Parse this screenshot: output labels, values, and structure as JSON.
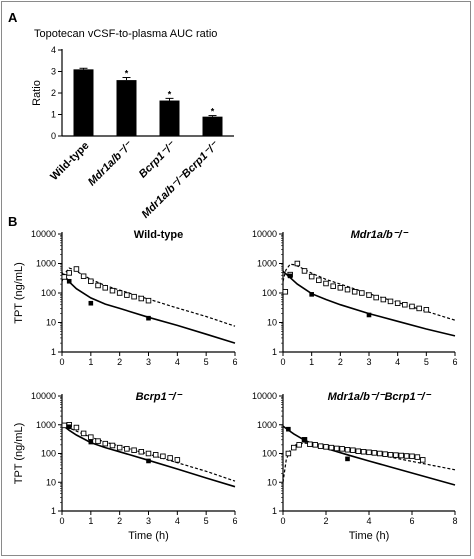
{
  "panel_a_letter": "A",
  "panel_b_letter": "B",
  "chart_data": [
    {
      "type": "bar",
      "title": "Topotecan vCSF-to-plasma AUC ratio",
      "ylabel": "Ratio",
      "ylim": [
        0,
        4
      ],
      "yticks": [
        0,
        1,
        2,
        3,
        4
      ],
      "categories": [
        "Wild-type",
        "Mdr1a/b⁻/⁻",
        "Bcrp1⁻/⁻",
        "Mdr1a/b⁻/⁻Bcrp1⁻/⁻"
      ],
      "values": [
        3.1,
        2.6,
        1.65,
        0.9
      ],
      "errors": [
        0.05,
        0.12,
        0.1,
        0.05
      ],
      "significance": [
        "",
        "*",
        "*",
        "*"
      ],
      "bar_color": "#000000"
    },
    {
      "type": "scatter",
      "panel_title": "Wild-type",
      "xlabel": "",
      "ylabel": "TPT (ng/mL)",
      "xlim": [
        0,
        6
      ],
      "xticks": [
        0,
        1,
        2,
        3,
        4,
        5,
        6
      ],
      "ylim": [
        1,
        10000
      ],
      "yscale": "log",
      "yticks": [
        1,
        10,
        100,
        1000,
        10000
      ],
      "plasma_observed": {
        "x": [
          0.25,
          1,
          3
        ],
        "y": [
          250,
          45,
          14
        ]
      },
      "vcsf_observed": {
        "x": [
          0.08,
          0.25,
          0.5,
          0.75,
          1,
          1.25,
          1.5,
          1.75,
          2,
          2.25,
          2.5,
          2.75,
          3
        ],
        "y": [
          350,
          480,
          650,
          370,
          250,
          180,
          150,
          120,
          100,
          85,
          75,
          65,
          55
        ]
      },
      "plasma_model": {
        "x": [
          0,
          0.25,
          0.5,
          1,
          1.5,
          2,
          3,
          4,
          5,
          6
        ],
        "y": [
          480,
          240,
          140,
          68,
          42,
          30,
          15,
          8,
          4,
          2
        ]
      },
      "vcsf_model": {
        "x": [
          0,
          0.1,
          0.25,
          0.4,
          0.6,
          1,
          1.5,
          2,
          3,
          4,
          5,
          6
        ],
        "y": [
          250,
          460,
          700,
          630,
          480,
          290,
          180,
          125,
          62,
          31,
          16,
          7.5
        ]
      }
    },
    {
      "type": "scatter",
      "panel_title": "Mdr1a/b⁻/⁻",
      "xlabel": "",
      "ylabel": "",
      "xlim": [
        0,
        6
      ],
      "xticks": [
        0,
        1,
        2,
        3,
        4,
        5,
        6
      ],
      "ylim": [
        1,
        10000
      ],
      "yscale": "log",
      "yticks": [
        1,
        10,
        100,
        1000,
        10000
      ],
      "plasma_observed": {
        "x": [
          0.25,
          1,
          3
        ],
        "y": [
          380,
          90,
          18
        ]
      },
      "vcsf_observed": {
        "x": [
          0.08,
          0.25,
          0.5,
          0.75,
          1,
          1.25,
          1.5,
          1.75,
          2,
          2.25,
          2.5,
          2.75,
          3,
          3.25,
          3.5,
          3.75,
          4,
          4.25,
          4.5,
          4.75,
          5
        ],
        "y": [
          110,
          420,
          1000,
          560,
          360,
          270,
          210,
          170,
          150,
          130,
          110,
          100,
          85,
          70,
          60,
          52,
          45,
          40,
          35,
          30,
          27
        ]
      },
      "plasma_model": {
        "x": [
          0,
          0.25,
          0.5,
          1,
          1.5,
          2,
          3,
          4,
          5,
          6
        ],
        "y": [
          550,
          330,
          200,
          95,
          60,
          40,
          20,
          11,
          6,
          3.5
        ]
      },
      "vcsf_model": {
        "x": [
          0,
          0.1,
          0.25,
          0.4,
          0.6,
          1,
          1.5,
          2,
          3,
          4,
          5,
          6
        ],
        "y": [
          250,
          600,
          950,
          900,
          750,
          470,
          290,
          200,
          95,
          48,
          24,
          12
        ]
      }
    },
    {
      "type": "scatter",
      "panel_title": "Bcrp1⁻/⁻",
      "xlabel": "Time (h)",
      "ylabel": "TPT (ng/mL)",
      "xlim": [
        0,
        6
      ],
      "xticks": [
        0,
        1,
        2,
        3,
        4,
        5,
        6
      ],
      "ylim": [
        1,
        10000
      ],
      "yscale": "log",
      "yticks": [
        1,
        10,
        100,
        1000,
        10000
      ],
      "plasma_observed": {
        "x": [
          0.25,
          1,
          3
        ],
        "y": [
          850,
          250,
          55
        ]
      },
      "vcsf_observed": {
        "x": [
          0.08,
          0.25,
          0.5,
          0.75,
          1,
          1.25,
          1.5,
          1.75,
          2,
          2.25,
          2.5,
          2.75,
          3,
          3.25,
          3.5,
          3.75,
          4
        ],
        "y": [
          950,
          1000,
          800,
          500,
          370,
          270,
          220,
          190,
          160,
          145,
          130,
          115,
          100,
          90,
          80,
          70,
          60
        ]
      },
      "plasma_model": {
        "x": [
          0,
          0.25,
          0.5,
          1,
          1.5,
          2,
          3,
          4,
          5,
          6
        ],
        "y": [
          1000,
          640,
          440,
          240,
          160,
          115,
          58,
          29,
          14,
          7
        ]
      },
      "vcsf_model": {
        "x": [
          0,
          0.25,
          0.5,
          1,
          1.5,
          2,
          3,
          4,
          5,
          6
        ],
        "y": [
          1000,
          780,
          600,
          370,
          250,
          180,
          95,
          48,
          24,
          11
        ]
      }
    },
    {
      "type": "scatter",
      "panel_title": "Mdr1a/b⁻/⁻Bcrp1⁻/⁻",
      "xlabel": "Time (h)",
      "ylabel": "",
      "xlim": [
        0,
        8
      ],
      "xticks": [
        0,
        2,
        4,
        6,
        8
      ],
      "ylim": [
        1,
        10000
      ],
      "yscale": "log",
      "yticks": [
        1,
        10,
        100,
        1000,
        10000
      ],
      "plasma_observed": {
        "x": [
          0.25,
          1,
          3
        ],
        "y": [
          700,
          300,
          65
        ]
      },
      "vcsf_observed": {
        "x": [
          0.25,
          0.5,
          0.75,
          1,
          1.25,
          1.5,
          1.75,
          2,
          2.25,
          2.5,
          2.75,
          3,
          3.25,
          3.5,
          3.75,
          4,
          4.25,
          4.5,
          4.75,
          5,
          5.25,
          5.5,
          5.75,
          6,
          6.25,
          6.5
        ],
        "y": [
          100,
          160,
          200,
          300,
          210,
          200,
          180,
          170,
          160,
          150,
          145,
          135,
          130,
          120,
          115,
          110,
          105,
          100,
          95,
          90,
          88,
          85,
          82,
          80,
          75,
          60
        ]
      },
      "plasma_model": {
        "x": [
          0,
          0.25,
          0.5,
          1,
          1.5,
          2,
          3,
          4,
          5,
          6,
          7,
          8
        ],
        "y": [
          900,
          650,
          480,
          290,
          200,
          150,
          90,
          55,
          34,
          21,
          13,
          8
        ]
      },
      "vcsf_model": {
        "x": [
          0,
          0.15,
          0.35,
          0.6,
          1,
          1.5,
          2,
          3,
          4,
          5,
          6,
          7,
          8
        ],
        "y": [
          10,
          60,
          140,
          200,
          230,
          215,
          190,
          145,
          105,
          75,
          53,
          38,
          27
        ]
      }
    }
  ]
}
